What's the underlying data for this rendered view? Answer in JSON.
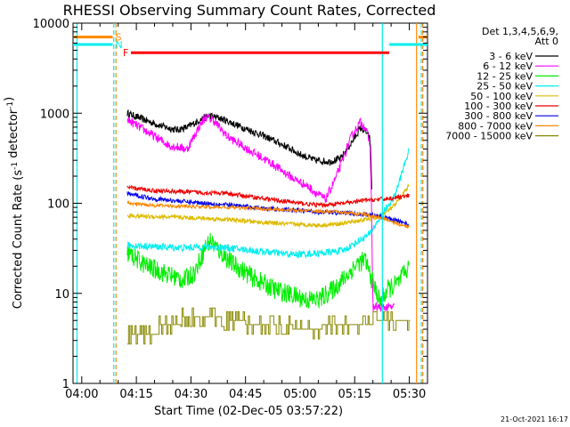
{
  "chart_data": {
    "type": "line",
    "title": "RHESSI Observing Summary Count Rates, Corrected",
    "xlabel": "Start Time (02-Dec-05 03:57:22)",
    "ylabel": "Corrected Count Rate (s⁻¹ detector⁻¹)",
    "y_scale": "log",
    "ylim": [
      1,
      10000
    ],
    "xlim_minutes": [
      -2.4,
      95
    ],
    "x_ticks": [
      {
        "label": "04:00",
        "minutes": 0
      },
      {
        "label": "04:15",
        "minutes": 15
      },
      {
        "label": "04:30",
        "minutes": 30
      },
      {
        "label": "04:45",
        "minutes": 45
      },
      {
        "label": "05:00",
        "minutes": 60
      },
      {
        "label": "05:15",
        "minutes": 75
      },
      {
        "label": "05:30",
        "minutes": 90
      }
    ],
    "y_ticks": [
      {
        "label": "1",
        "value": 1
      },
      {
        "label": "10",
        "value": 10
      },
      {
        "label": "100",
        "value": 100
      },
      {
        "label": "1000",
        "value": 1000
      },
      {
        "label": "10000",
        "value": 10000
      }
    ],
    "legend_header": [
      "Det 1,3,4,5,6,9,",
      "Att 0"
    ],
    "legend_position": "top-right",
    "series": [
      {
        "name": "3 - 6 keV",
        "color": "#000000",
        "noise": 0.08,
        "points": [
          [
            12.5,
            1000
          ],
          [
            18,
            820
          ],
          [
            22,
            720
          ],
          [
            26,
            650
          ],
          [
            29,
            700
          ],
          [
            32,
            820
          ],
          [
            35,
            940
          ],
          [
            38,
            880
          ],
          [
            44,
            700
          ],
          [
            50,
            560
          ],
          [
            56,
            430
          ],
          [
            60,
            350
          ],
          [
            64,
            300
          ],
          [
            68,
            290
          ],
          [
            71,
            310
          ],
          [
            74,
            460
          ],
          [
            76.5,
            680
          ],
          [
            78,
            630
          ],
          [
            79.2,
            520
          ],
          [
            79.4,
            350
          ],
          [
            79.6,
            200
          ],
          [
            79.8,
            95
          ]
        ]
      },
      {
        "name": "6 - 12 keV",
        "color": "#ff00ff",
        "noise": 0.1,
        "points": [
          [
            12.5,
            850
          ],
          [
            18,
            620
          ],
          [
            24,
            440
          ],
          [
            29,
            400
          ],
          [
            32,
            680
          ],
          [
            34,
            910
          ],
          [
            36,
            850
          ],
          [
            40,
            550
          ],
          [
            46,
            390
          ],
          [
            52,
            280
          ],
          [
            58,
            190
          ],
          [
            62,
            155
          ],
          [
            65,
            125
          ],
          [
            67,
            110
          ],
          [
            70,
            200
          ],
          [
            74,
            540
          ],
          [
            76.5,
            800
          ],
          [
            78,
            690
          ],
          [
            79.2,
            450
          ],
          [
            79.5,
            170
          ],
          [
            80,
            7
          ],
          [
            86,
            7
          ]
        ]
      },
      {
        "name": "12 - 25 keV",
        "color": "#00ee00",
        "noise": 0.22,
        "points": [
          [
            12.5,
            28
          ],
          [
            18,
            20
          ],
          [
            24,
            16
          ],
          [
            28,
            14
          ],
          [
            31,
            17
          ],
          [
            34,
            33
          ],
          [
            35.5,
            39
          ],
          [
            37,
            32
          ],
          [
            41,
            22
          ],
          [
            47,
            15
          ],
          [
            53,
            11
          ],
          [
            58,
            9.5
          ],
          [
            62,
            8.5
          ],
          [
            65,
            8.5
          ],
          [
            69,
            11
          ],
          [
            73,
            16
          ],
          [
            76,
            22
          ],
          [
            78,
            23
          ],
          [
            80,
            13
          ],
          [
            82,
            8
          ],
          [
            84,
            11
          ],
          [
            87,
            13
          ],
          [
            90,
            20
          ]
        ]
      },
      {
        "name": "25 - 50 keV",
        "color": "#00eeee",
        "noise": 0.08,
        "points": [
          [
            12.5,
            34
          ],
          [
            20,
            33
          ],
          [
            28,
            32
          ],
          [
            34,
            33
          ],
          [
            40,
            32
          ],
          [
            50,
            29
          ],
          [
            58,
            27
          ],
          [
            66,
            28
          ],
          [
            72,
            30
          ],
          [
            76,
            38
          ],
          [
            79,
            45
          ],
          [
            82,
            70
          ],
          [
            86,
            120
          ],
          [
            90,
            400
          ]
        ]
      },
      {
        "name": "50 - 100 keV",
        "color": "#ddbb00",
        "noise": 0.05,
        "points": [
          [
            12.5,
            73
          ],
          [
            20,
            71
          ],
          [
            30,
            69
          ],
          [
            40,
            66
          ],
          [
            50,
            61
          ],
          [
            60,
            58
          ],
          [
            66,
            57
          ],
          [
            72,
            60
          ],
          [
            78,
            66
          ],
          [
            82,
            70
          ],
          [
            86,
            95
          ],
          [
            90,
            160
          ]
        ]
      },
      {
        "name": "100 - 300 keV",
        "color": "#ee0000",
        "noise": 0.05,
        "points": [
          [
            12.5,
            150
          ],
          [
            20,
            138
          ],
          [
            30,
            133
          ],
          [
            40,
            128
          ],
          [
            50,
            113
          ],
          [
            60,
            100
          ],
          [
            66,
            95
          ],
          [
            72,
            100
          ],
          [
            78,
            108
          ],
          [
            84,
            112
          ],
          [
            88,
            118
          ],
          [
            90,
            120
          ]
        ]
      },
      {
        "name": "300 - 800 keV",
        "color": "#0000ee",
        "noise": 0.05,
        "points": [
          [
            12.5,
            128
          ],
          [
            20,
            112
          ],
          [
            30,
            103
          ],
          [
            40,
            96
          ],
          [
            50,
            88
          ],
          [
            60,
            83
          ],
          [
            66,
            80
          ],
          [
            72,
            78
          ],
          [
            80,
            74
          ],
          [
            84,
            68
          ],
          [
            88,
            62
          ],
          [
            90,
            58
          ]
        ]
      },
      {
        "name": "800 - 7000 keV",
        "color": "#ff8800",
        "noise": 0.04,
        "points": [
          [
            12.5,
            100
          ],
          [
            20,
            95
          ],
          [
            30,
            92
          ],
          [
            40,
            90
          ],
          [
            50,
            87
          ],
          [
            60,
            83
          ],
          [
            70,
            80
          ],
          [
            78,
            75
          ],
          [
            84,
            66
          ],
          [
            87,
            58
          ],
          [
            90,
            55
          ]
        ]
      },
      {
        "name": "7000 - 15000 keV",
        "color": "#888800",
        "noise": 0,
        "steps": [
          [
            12.5,
            3.5
          ],
          [
            19,
            3.5
          ],
          [
            21,
            4.5
          ],
          [
            27,
            5.5
          ],
          [
            39,
            5
          ],
          [
            45,
            4.5
          ],
          [
            58,
            4
          ],
          [
            66,
            4.5
          ],
          [
            73,
            4.5
          ],
          [
            80,
            5
          ],
          [
            90,
            4.5
          ]
        ]
      }
    ],
    "flags": [
      {
        "label": "S",
        "color": "#ff8800",
        "segments": [
          [
            -2.4,
            8.5
          ],
          [
            92.5,
            95
          ]
        ],
        "value": 7000
      },
      {
        "label": "N",
        "color": "#00eeee",
        "segments": [
          [
            -2.4,
            8.5
          ],
          [
            84.5,
            95
          ]
        ],
        "value": 5800
      },
      {
        "label": "F",
        "color": "#ff0000",
        "segments": [
          [
            13.5,
            84.5
          ]
        ],
        "value": 4700
      }
    ],
    "vertical_lines": [
      {
        "minutes": -1.3,
        "color": "#00eeee",
        "dashed": false
      },
      {
        "minutes": 8.8,
        "color": "#00eeee",
        "dashed": true
      },
      {
        "minutes": 9.4,
        "color": "#ff8800",
        "dashed": true
      },
      {
        "minutes": 82.6,
        "color": "#00eeee",
        "dashed": false
      },
      {
        "minutes": 92.0,
        "color": "#ff8800",
        "dashed": false
      },
      {
        "minutes": 93.3,
        "color": "#00eeee",
        "dashed": true
      },
      {
        "minutes": 93.7,
        "color": "#ff8800",
        "dashed": true
      }
    ],
    "grid": false,
    "timestamp": "21-Oct-2021 16:17"
  }
}
